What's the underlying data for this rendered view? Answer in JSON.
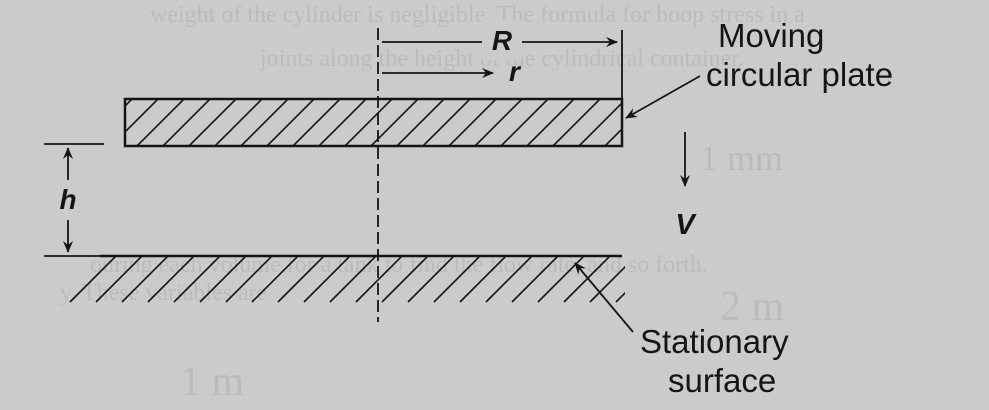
{
  "background_text": {
    "line1": "weight of the cylinder is negligible. The formula for hoop stress in a",
    "line2": "joints along the height of the cylindrical container.",
    "line3": "ouring each volume for a tank to find the flow rate, and so forth.",
    "line4": "y. These variables are",
    "side1": "1 mm",
    "side2": "2 m",
    "side3": "1 m"
  },
  "labels": {
    "R": "R",
    "r": "r",
    "h": "h",
    "V": "V",
    "moving_line1": "Moving",
    "moving_line2": "circular plate",
    "stationary_line1": "Stationary",
    "stationary_line2": "surface"
  },
  "colors": {
    "ink": "#151515",
    "background": "#c9cbcd"
  }
}
